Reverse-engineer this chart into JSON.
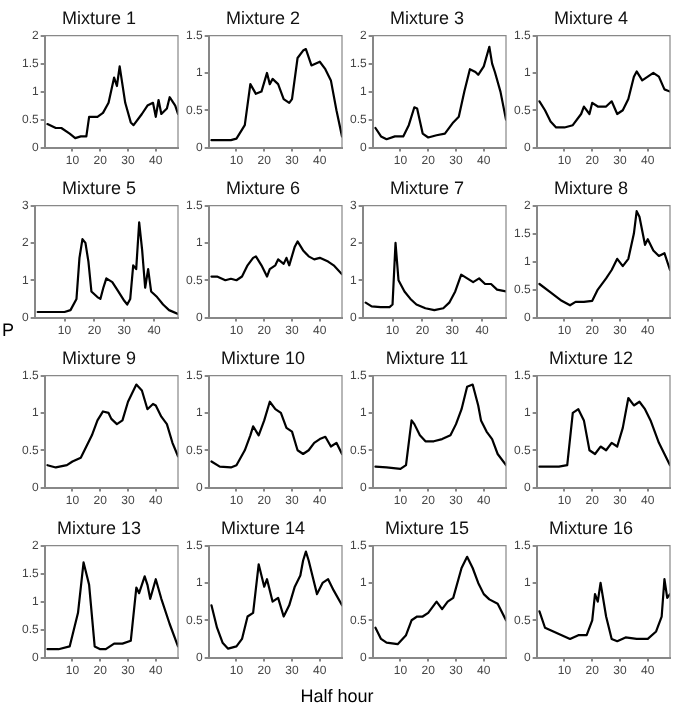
{
  "chart_data": [
    {
      "type": "line",
      "title": "Mixture 1",
      "x": [
        1,
        4,
        6,
        9,
        11,
        13,
        15,
        16,
        19,
        21,
        23,
        25,
        26,
        27,
        29,
        31,
        32,
        35,
        37,
        39,
        40,
        41,
        42,
        44,
        45,
        47,
        48
      ],
      "series": [
        {
          "color": "#000000",
          "values": [
            0.42,
            0.35,
            0.35,
            0.25,
            0.17,
            0.2,
            0.2,
            0.55,
            0.55,
            0.62,
            0.8,
            1.25,
            1.1,
            1.45,
            0.8,
            0.45,
            0.4,
            0.6,
            0.75,
            0.8,
            0.55,
            0.85,
            0.6,
            0.7,
            0.9,
            0.75,
            0.6
          ]
        }
      ],
      "xlim": [
        0,
        48
      ],
      "xticks": [
        10,
        20,
        30,
        40
      ],
      "ylim": [
        0,
        2
      ],
      "yticks": [
        0,
        0.5,
        1,
        1.5,
        2
      ],
      "grid": false,
      "legend": false,
      "marker": "none",
      "line_style": "solid"
    },
    {
      "type": "line",
      "title": "Mixture 2",
      "x": [
        1,
        4,
        8,
        10,
        13,
        15,
        17,
        19,
        21,
        22,
        23,
        25,
        27,
        29,
        30,
        32,
        34,
        35,
        37,
        40,
        42,
        44,
        46,
        48
      ],
      "series": [
        {
          "color": "#000000",
          "values": [
            0.1,
            0.1,
            0.1,
            0.12,
            0.3,
            0.85,
            0.72,
            0.75,
            1.0,
            0.85,
            0.92,
            0.85,
            0.65,
            0.6,
            0.65,
            1.2,
            1.3,
            1.32,
            1.1,
            1.15,
            1.05,
            0.9,
            0.5,
            0.15
          ]
        }
      ],
      "xlim": [
        0,
        48
      ],
      "xticks": [
        10,
        20,
        30,
        40
      ],
      "ylim": [
        0,
        1.5
      ],
      "yticks": [
        0,
        0.5,
        1,
        1.5
      ],
      "grid": false,
      "legend": false,
      "marker": "none",
      "line_style": "solid"
    },
    {
      "type": "line",
      "title": "Mixture 3",
      "x": [
        1,
        3,
        5,
        8,
        11,
        13,
        15,
        16,
        18,
        20,
        23,
        26,
        29,
        31,
        33,
        35,
        37,
        38,
        40,
        42,
        43,
        44,
        46,
        48
      ],
      "series": [
        {
          "color": "#000000",
          "values": [
            0.35,
            0.2,
            0.15,
            0.2,
            0.2,
            0.4,
            0.72,
            0.7,
            0.25,
            0.18,
            0.22,
            0.25,
            0.45,
            0.55,
            1.0,
            1.4,
            1.35,
            1.3,
            1.45,
            1.8,
            1.5,
            1.35,
            1.0,
            0.5
          ]
        }
      ],
      "xlim": [
        0,
        48
      ],
      "xticks": [
        10,
        20,
        30,
        40
      ],
      "ylim": [
        0,
        2
      ],
      "yticks": [
        0,
        0.5,
        1,
        1.5,
        2
      ],
      "grid": false,
      "legend": false,
      "marker": "none",
      "line_style": "solid"
    },
    {
      "type": "line",
      "title": "Mixture 4",
      "x": [
        1,
        3,
        5,
        7,
        10,
        13,
        16,
        17,
        19,
        20,
        22,
        25,
        27,
        29,
        31,
        33,
        35,
        36,
        38,
        40,
        42,
        44,
        46,
        48
      ],
      "series": [
        {
          "color": "#000000",
          "values": [
            0.62,
            0.5,
            0.35,
            0.27,
            0.27,
            0.3,
            0.45,
            0.55,
            0.45,
            0.6,
            0.55,
            0.55,
            0.62,
            0.45,
            0.5,
            0.65,
            0.95,
            1.02,
            0.9,
            0.95,
            1.0,
            0.95,
            0.78,
            0.75
          ]
        }
      ],
      "xlim": [
        0,
        48
      ],
      "xticks": [
        10,
        20,
        30,
        40
      ],
      "ylim": [
        0,
        1.5
      ],
      "yticks": [
        0,
        0.5,
        1,
        1.5
      ],
      "grid": false,
      "legend": false,
      "marker": "none",
      "line_style": "solid"
    },
    {
      "type": "line",
      "title": "Mixture 5",
      "x": [
        1,
        5,
        10,
        12,
        14,
        15,
        16,
        17,
        18,
        19,
        21,
        22,
        23,
        24,
        26,
        28,
        30,
        31,
        32,
        33,
        34,
        35,
        36,
        37,
        38,
        39,
        41,
        43,
        45,
        48
      ],
      "series": [
        {
          "color": "#000000",
          "values": [
            0.15,
            0.15,
            0.15,
            0.2,
            0.5,
            1.6,
            2.1,
            2.0,
            1.5,
            0.7,
            0.55,
            0.5,
            0.8,
            1.05,
            0.95,
            0.7,
            0.45,
            0.35,
            0.5,
            1.4,
            1.3,
            2.55,
            1.8,
            0.8,
            1.3,
            0.7,
            0.55,
            0.35,
            0.2,
            0.1
          ]
        }
      ],
      "xlim": [
        0,
        48
      ],
      "xticks": [
        10,
        20,
        30,
        40
      ],
      "ylim": [
        0,
        3
      ],
      "yticks": [
        0,
        1,
        2,
        3
      ],
      "grid": false,
      "legend": false,
      "marker": "none",
      "line_style": "solid"
    },
    {
      "type": "line",
      "title": "Mixture 6",
      "x": [
        1,
        3,
        6,
        8,
        10,
        12,
        14,
        16,
        17,
        19,
        21,
        22,
        24,
        25,
        27,
        28,
        29,
        31,
        32,
        34,
        36,
        38,
        40,
        43,
        45,
        48
      ],
      "series": [
        {
          "color": "#000000",
          "values": [
            0.55,
            0.55,
            0.5,
            0.52,
            0.5,
            0.55,
            0.7,
            0.8,
            0.82,
            0.7,
            0.55,
            0.65,
            0.7,
            0.78,
            0.72,
            0.8,
            0.7,
            0.95,
            1.02,
            0.9,
            0.82,
            0.78,
            0.8,
            0.75,
            0.7,
            0.58
          ]
        }
      ],
      "xlim": [
        0,
        48
      ],
      "xticks": [
        10,
        20,
        30,
        40
      ],
      "ylim": [
        0,
        1.5
      ],
      "yticks": [
        0,
        0.5,
        1,
        1.5
      ],
      "grid": false,
      "legend": false,
      "marker": "none",
      "line_style": "solid"
    },
    {
      "type": "line",
      "title": "Mixture 7",
      "x": [
        1,
        3,
        6,
        9,
        10,
        11,
        12,
        14,
        16,
        18,
        21,
        24,
        27,
        29,
        31,
        33,
        35,
        37,
        39,
        41,
        43,
        45,
        48
      ],
      "series": [
        {
          "color": "#000000",
          "values": [
            0.4,
            0.3,
            0.28,
            0.28,
            0.35,
            2.0,
            1.0,
            0.7,
            0.5,
            0.35,
            0.25,
            0.2,
            0.25,
            0.4,
            0.7,
            1.15,
            1.05,
            0.95,
            1.05,
            0.9,
            0.9,
            0.75,
            0.7
          ]
        }
      ],
      "xlim": [
        0,
        48
      ],
      "xticks": [
        10,
        20,
        30,
        40
      ],
      "ylim": [
        0,
        3
      ],
      "yticks": [
        0,
        1,
        2,
        3
      ],
      "grid": false,
      "legend": false,
      "marker": "none",
      "line_style": "solid"
    },
    {
      "type": "line",
      "title": "Mixture 8",
      "x": [
        1,
        5,
        9,
        12,
        14,
        17,
        20,
        22,
        25,
        27,
        29,
        31,
        33,
        35,
        36,
        37,
        39,
        40,
        42,
        44,
        46,
        48
      ],
      "series": [
        {
          "color": "#000000",
          "values": [
            0.6,
            0.45,
            0.3,
            0.22,
            0.28,
            0.28,
            0.3,
            0.5,
            0.7,
            0.85,
            1.05,
            0.92,
            1.05,
            1.5,
            1.9,
            1.8,
            1.3,
            1.4,
            1.2,
            1.1,
            1.15,
            0.85
          ]
        }
      ],
      "xlim": [
        0,
        48
      ],
      "xticks": [
        10,
        20,
        30,
        40
      ],
      "ylim": [
        0,
        2
      ],
      "yticks": [
        0,
        0.5,
        1,
        1.5,
        2
      ],
      "grid": false,
      "legend": false,
      "marker": "none",
      "line_style": "solid"
    },
    {
      "type": "line",
      "title": "Mixture 9",
      "ylabel": "P",
      "x": [
        1,
        4,
        8,
        10,
        13,
        15,
        17,
        19,
        21,
        23,
        24,
        26,
        28,
        30,
        33,
        35,
        37,
        39,
        40,
        42,
        44,
        46,
        48
      ],
      "series": [
        {
          "color": "#000000",
          "values": [
            0.3,
            0.27,
            0.3,
            0.35,
            0.4,
            0.55,
            0.7,
            0.9,
            1.02,
            1.0,
            0.92,
            0.85,
            0.9,
            1.15,
            1.38,
            1.3,
            1.05,
            1.12,
            1.1,
            0.95,
            0.85,
            0.6,
            0.42
          ]
        }
      ],
      "xlim": [
        0,
        48
      ],
      "xticks": [
        10,
        20,
        30,
        40
      ],
      "ylim": [
        0,
        1.5
      ],
      "yticks": [
        0,
        0.5,
        1,
        1.5
      ],
      "grid": false,
      "legend": false,
      "marker": "none",
      "line_style": "solid"
    },
    {
      "type": "line",
      "title": "Mixture 10",
      "x": [
        1,
        4,
        8,
        10,
        13,
        15,
        16,
        18,
        20,
        22,
        24,
        26,
        28,
        30,
        32,
        34,
        36,
        38,
        40,
        42,
        44,
        46,
        48
      ],
      "series": [
        {
          "color": "#000000",
          "values": [
            0.35,
            0.28,
            0.27,
            0.3,
            0.5,
            0.7,
            0.82,
            0.7,
            0.9,
            1.15,
            1.05,
            1.0,
            0.8,
            0.75,
            0.5,
            0.45,
            0.5,
            0.6,
            0.65,
            0.68,
            0.55,
            0.6,
            0.45
          ]
        }
      ],
      "xlim": [
        0,
        48
      ],
      "xticks": [
        10,
        20,
        30,
        40
      ],
      "ylim": [
        0,
        1.5
      ],
      "yticks": [
        0,
        0.5,
        1,
        1.5
      ],
      "grid": false,
      "legend": false,
      "marker": "none",
      "line_style": "solid"
    },
    {
      "type": "line",
      "title": "Mixture 11",
      "x": [
        1,
        5,
        10,
        12,
        14,
        15,
        17,
        19,
        22,
        25,
        28,
        30,
        32,
        34,
        36,
        38,
        39,
        41,
        43,
        45,
        48
      ],
      "series": [
        {
          "color": "#000000",
          "values": [
            0.28,
            0.27,
            0.25,
            0.3,
            0.9,
            0.85,
            0.7,
            0.62,
            0.62,
            0.65,
            0.7,
            0.85,
            1.05,
            1.35,
            1.38,
            1.1,
            0.9,
            0.75,
            0.65,
            0.45,
            0.3
          ]
        }
      ],
      "xlim": [
        0,
        48
      ],
      "xticks": [
        10,
        20,
        30,
        40
      ],
      "ylim": [
        0,
        1.5
      ],
      "yticks": [
        0,
        0.5,
        1,
        1.5
      ],
      "grid": false,
      "legend": false,
      "marker": "none",
      "line_style": "solid"
    },
    {
      "type": "line",
      "title": "Mixture 12",
      "x": [
        1,
        8,
        11,
        13,
        15,
        17,
        19,
        21,
        23,
        25,
        27,
        29,
        31,
        33,
        35,
        37,
        39,
        41,
        44,
        48
      ],
      "series": [
        {
          "color": "#000000",
          "values": [
            0.28,
            0.28,
            0.3,
            1.0,
            1.05,
            0.9,
            0.5,
            0.45,
            0.55,
            0.5,
            0.6,
            0.55,
            0.8,
            1.2,
            1.1,
            1.15,
            1.05,
            0.9,
            0.6,
            0.3
          ]
        }
      ],
      "xlim": [
        0,
        48
      ],
      "xticks": [
        10,
        20,
        30,
        40
      ],
      "ylim": [
        0,
        1.5
      ],
      "yticks": [
        0,
        0.5,
        1,
        1.5
      ],
      "grid": false,
      "legend": false,
      "marker": "none",
      "line_style": "solid"
    },
    {
      "type": "line",
      "title": "Mixture 13",
      "x": [
        1,
        5,
        9,
        12,
        14,
        16,
        18,
        20,
        22,
        25,
        28,
        31,
        33,
        34,
        36,
        37,
        38,
        40,
        42,
        45,
        48
      ],
      "series": [
        {
          "color": "#000000",
          "values": [
            0.15,
            0.15,
            0.2,
            0.8,
            1.7,
            1.3,
            0.2,
            0.15,
            0.15,
            0.25,
            0.25,
            0.3,
            1.25,
            1.15,
            1.45,
            1.3,
            1.05,
            1.4,
            1.05,
            0.6,
            0.2
          ]
        }
      ],
      "xlim": [
        0,
        48
      ],
      "xticks": [
        10,
        20,
        30,
        40
      ],
      "ylim": [
        0,
        2
      ],
      "yticks": [
        0,
        0.5,
        1,
        1.5,
        2
      ],
      "grid": false,
      "legend": false,
      "marker": "none",
      "line_style": "solid"
    },
    {
      "type": "line",
      "title": "Mixture 14",
      "xlabel": "Half hour",
      "x": [
        1,
        3,
        5,
        7,
        10,
        12,
        14,
        16,
        18,
        20,
        21,
        23,
        25,
        27,
        29,
        31,
        33,
        34,
        35,
        36,
        37,
        39,
        41,
        43,
        45,
        48
      ],
      "series": [
        {
          "color": "#000000",
          "values": [
            0.7,
            0.4,
            0.2,
            0.12,
            0.15,
            0.25,
            0.55,
            0.6,
            1.25,
            0.95,
            1.05,
            0.75,
            0.8,
            0.55,
            0.7,
            0.95,
            1.1,
            1.3,
            1.42,
            1.3,
            1.15,
            0.85,
            1.0,
            1.05,
            0.9,
            0.7
          ]
        }
      ],
      "xlim": [
        0,
        48
      ],
      "xticks": [
        10,
        20,
        30,
        40
      ],
      "ylim": [
        0,
        1.5
      ],
      "yticks": [
        0,
        0.5,
        1,
        1.5
      ],
      "grid": false,
      "legend": false,
      "marker": "none",
      "line_style": "solid"
    },
    {
      "type": "line",
      "title": "Mixture 15",
      "x": [
        1,
        3,
        5,
        9,
        12,
        14,
        16,
        18,
        20,
        23,
        25,
        27,
        29,
        32,
        34,
        36,
        38,
        40,
        42,
        45,
        48
      ],
      "series": [
        {
          "color": "#000000",
          "values": [
            0.4,
            0.25,
            0.2,
            0.18,
            0.3,
            0.5,
            0.55,
            0.55,
            0.6,
            0.75,
            0.65,
            0.75,
            0.8,
            1.2,
            1.35,
            1.2,
            1.0,
            0.85,
            0.78,
            0.72,
            0.5
          ]
        }
      ],
      "xlim": [
        0,
        48
      ],
      "xticks": [
        10,
        20,
        30,
        40
      ],
      "ylim": [
        0,
        1.5
      ],
      "yticks": [
        0,
        0.5,
        1,
        1.5
      ],
      "grid": false,
      "legend": false,
      "marker": "none",
      "line_style": "solid"
    },
    {
      "type": "line",
      "title": "Mixture 16",
      "x": [
        1,
        3,
        6,
        9,
        12,
        15,
        18,
        20,
        21,
        22,
        23,
        25,
        27,
        29,
        32,
        36,
        40,
        43,
        45,
        46,
        47,
        48
      ],
      "series": [
        {
          "color": "#000000",
          "values": [
            0.62,
            0.4,
            0.35,
            0.3,
            0.25,
            0.3,
            0.3,
            0.5,
            0.85,
            0.75,
            1.0,
            0.55,
            0.25,
            0.22,
            0.27,
            0.25,
            0.25,
            0.35,
            0.55,
            1.05,
            0.8,
            0.85
          ]
        }
      ],
      "xlim": [
        0,
        48
      ],
      "xticks": [
        10,
        20,
        30,
        40
      ],
      "ylim": [
        0,
        1.5
      ],
      "yticks": [
        0,
        0.5,
        1,
        1.5
      ],
      "grid": false,
      "legend": false,
      "marker": "none",
      "line_style": "solid"
    }
  ]
}
